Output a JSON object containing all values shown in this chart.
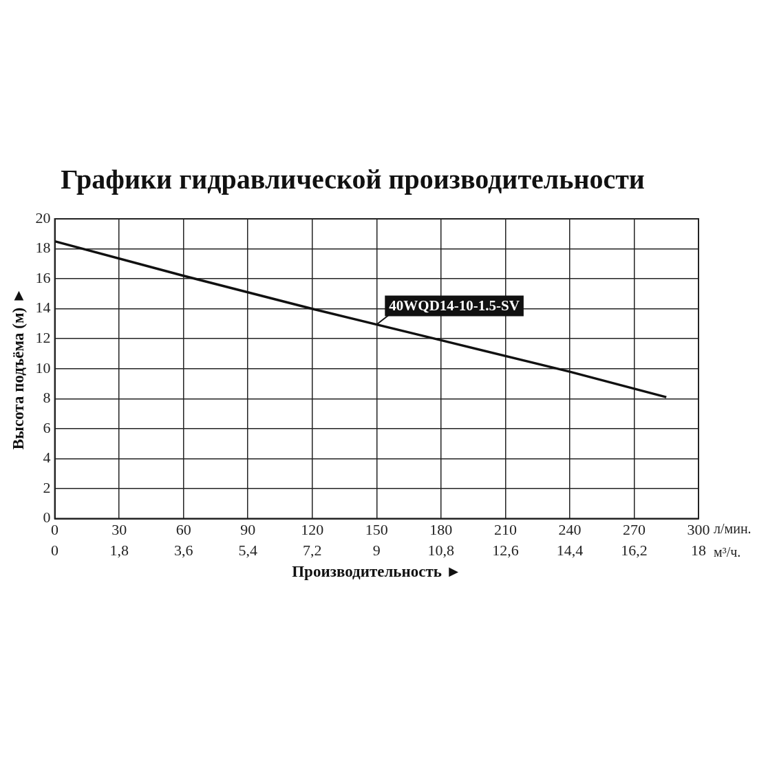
{
  "chart_data": {
    "type": "line",
    "title": "Графики гидравлической производительности",
    "xlabel": "Производительность ►",
    "ylabel": "Высота подъёма (м) ►",
    "x": [
      0,
      60,
      120,
      180,
      240,
      285
    ],
    "series": [
      {
        "name": "40WQD14-10-1.5-SV",
        "color": "#111111",
        "values": [
          18.5,
          16.2,
          14.0,
          11.9,
          9.8,
          8.1
        ]
      }
    ],
    "xlim": [
      0,
      300
    ],
    "xticks": [
      0,
      30,
      60,
      90,
      120,
      150,
      180,
      210,
      240,
      270,
      300
    ],
    "x2lim": [
      0,
      18
    ],
    "x2ticks": [
      0,
      {
        "value": 1.8,
        "label": "1,8"
      },
      {
        "value": 3.6,
        "label": "3,6"
      },
      {
        "value": 5.4,
        "label": "5,4"
      },
      {
        "value": 7.2,
        "label": "7,2"
      },
      9,
      {
        "value": 10.8,
        "label": "10,8"
      },
      {
        "value": 12.6,
        "label": "12,6"
      },
      {
        "value": 14.4,
        "label": "14,4"
      },
      {
        "value": 16.2,
        "label": "16,2"
      },
      18
    ],
    "ylim": [
      0,
      20
    ],
    "yticks": [
      0,
      2,
      4,
      6,
      8,
      10,
      12,
      14,
      16,
      18,
      20
    ],
    "grid": true,
    "marker": "none",
    "line_style": "solid",
    "annotations": [
      "л/мин.",
      "м³/ч."
    ]
  }
}
